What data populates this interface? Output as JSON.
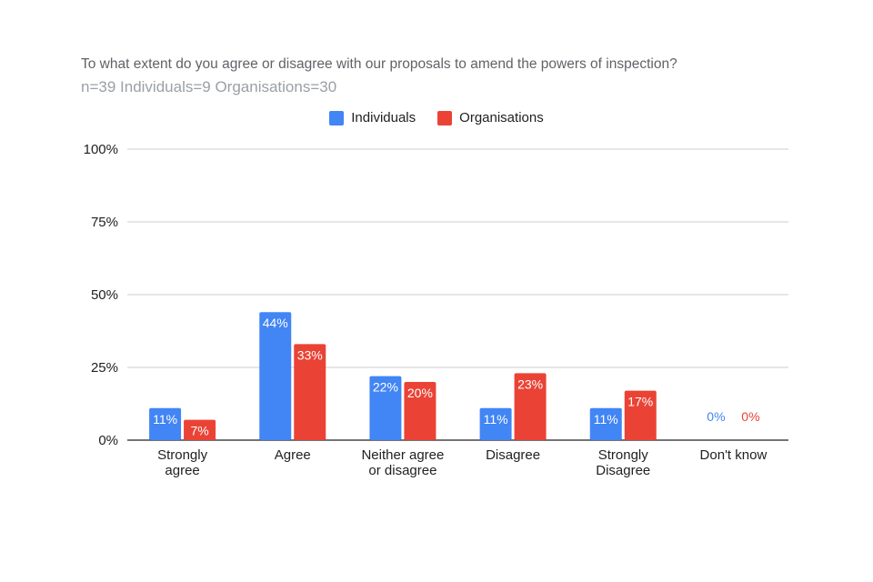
{
  "chart_data": {
    "type": "bar",
    "title": "To what extent do you agree or disagree with our proposals to amend the powers of inspection?",
    "subtitle": "n=39  Individuals=9  Organisations=30",
    "categories": [
      [
        "Strongly",
        "agree"
      ],
      [
        "Agree"
      ],
      [
        "Neither agree",
        "or disagree"
      ],
      [
        "Disagree"
      ],
      [
        "Strongly",
        "Disagree"
      ],
      [
        "Don't know"
      ]
    ],
    "series": [
      {
        "name": "Individuals",
        "color": "#4285f4",
        "values": [
          11,
          44,
          22,
          11,
          11,
          0
        ],
        "labels": [
          "11%",
          "44%",
          "22%",
          "11%",
          "11%",
          "0%"
        ]
      },
      {
        "name": "Organisations",
        "color": "#ea4335",
        "values": [
          7,
          33,
          20,
          23,
          17,
          0
        ],
        "labels": [
          "7%",
          "33%",
          "20%",
          "23%",
          "17%",
          "0%"
        ]
      }
    ],
    "yticks": [
      "0%",
      "25%",
      "50%",
      "75%",
      "100%"
    ],
    "ylim": [
      0,
      100
    ],
    "legend_position": "top-center",
    "grid": true
  }
}
